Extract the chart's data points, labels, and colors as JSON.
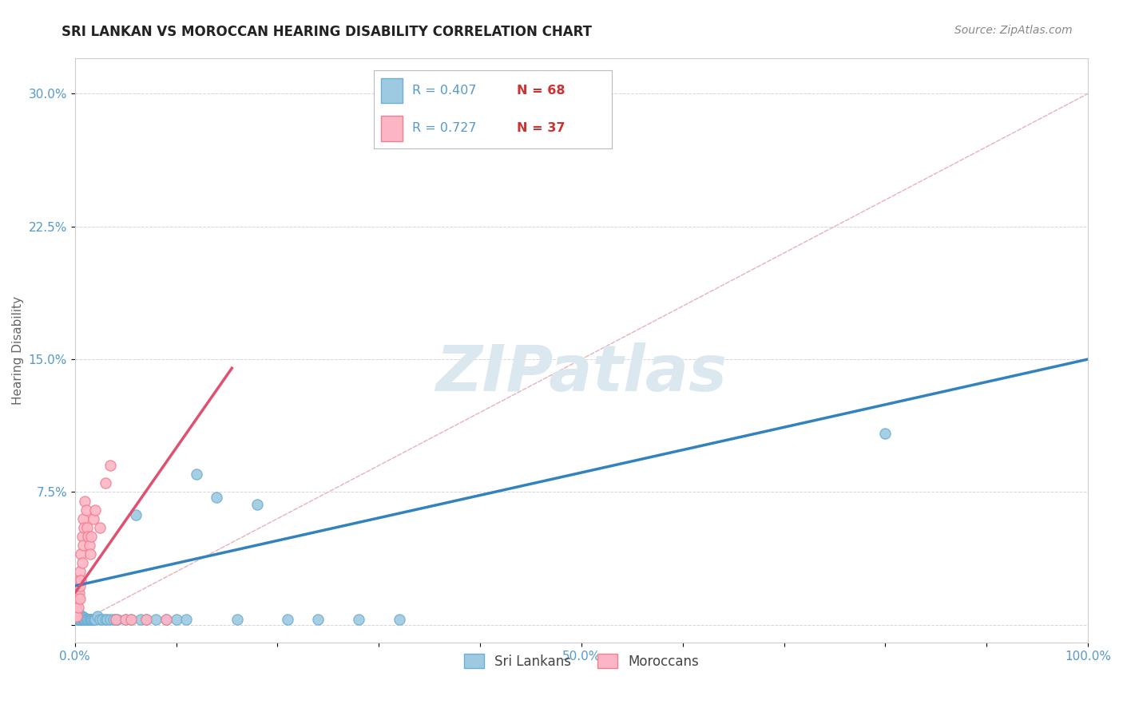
{
  "title": "SRI LANKAN VS MOROCCAN HEARING DISABILITY CORRELATION CHART",
  "source": "Source: ZipAtlas.com",
  "ylabel": "Hearing Disability",
  "xlim": [
    0.0,
    1.0
  ],
  "ylim": [
    -0.01,
    0.32
  ],
  "ytick_positions": [
    0.0,
    0.075,
    0.15,
    0.225,
    0.3
  ],
  "ytick_labels": [
    "",
    "7.5%",
    "15.0%",
    "22.5%",
    "30.0%"
  ],
  "xtick_positions": [
    0.0,
    0.1,
    0.2,
    0.3,
    0.4,
    0.5,
    0.6,
    0.7,
    0.8,
    0.9,
    1.0
  ],
  "xtick_labels": [
    "0.0%",
    "",
    "",
    "",
    "",
    "50.0%",
    "",
    "",
    "",
    "",
    "100.0%"
  ],
  "sri_lankans_color": "#9ecae1",
  "moroccans_color": "#fcb5c5",
  "sri_lankans_edge": "#6baed6",
  "moroccans_edge": "#f08090",
  "sri_line_color": "#3182bd",
  "mor_line_color": "#e05070",
  "diagonal_color": "#e8b0b8",
  "background_color": "#ffffff",
  "watermark_color": "#dce8f0",
  "title_fontsize": 12,
  "source_fontsize": 10,
  "tick_fontsize": 11,
  "ylabel_fontsize": 11,
  "sri_line_x": [
    0.0,
    1.0
  ],
  "sri_line_y": [
    0.022,
    0.15
  ],
  "mor_line_x": [
    0.0,
    0.155
  ],
  "mor_line_y": [
    0.018,
    0.145
  ],
  "sri_lankans_x": [
    0.001,
    0.001,
    0.001,
    0.001,
    0.002,
    0.002,
    0.002,
    0.002,
    0.002,
    0.003,
    0.003,
    0.003,
    0.003,
    0.004,
    0.004,
    0.004,
    0.005,
    0.005,
    0.005,
    0.005,
    0.006,
    0.006,
    0.007,
    0.007,
    0.007,
    0.008,
    0.008,
    0.009,
    0.009,
    0.01,
    0.01,
    0.011,
    0.012,
    0.013,
    0.014,
    0.015,
    0.016,
    0.017,
    0.018,
    0.019,
    0.02,
    0.022,
    0.025,
    0.027,
    0.03,
    0.032,
    0.035,
    0.038,
    0.04,
    0.042,
    0.05,
    0.055,
    0.06,
    0.065,
    0.07,
    0.08,
    0.09,
    0.1,
    0.11,
    0.12,
    0.14,
    0.16,
    0.18,
    0.21,
    0.24,
    0.28,
    0.32,
    0.8
  ],
  "sri_lankans_y": [
    0.01,
    0.015,
    0.005,
    0.008,
    0.012,
    0.005,
    0.008,
    0.003,
    0.006,
    0.005,
    0.007,
    0.004,
    0.003,
    0.005,
    0.003,
    0.006,
    0.004,
    0.003,
    0.005,
    0.003,
    0.005,
    0.003,
    0.004,
    0.003,
    0.005,
    0.004,
    0.003,
    0.004,
    0.003,
    0.004,
    0.003,
    0.003,
    0.003,
    0.003,
    0.003,
    0.003,
    0.003,
    0.003,
    0.003,
    0.003,
    0.003,
    0.005,
    0.003,
    0.003,
    0.003,
    0.003,
    0.003,
    0.003,
    0.003,
    0.003,
    0.003,
    0.003,
    0.062,
    0.003,
    0.003,
    0.003,
    0.003,
    0.003,
    0.003,
    0.085,
    0.072,
    0.003,
    0.068,
    0.003,
    0.003,
    0.003,
    0.003,
    0.108
  ],
  "moroccans_x": [
    0.001,
    0.001,
    0.002,
    0.002,
    0.002,
    0.003,
    0.003,
    0.003,
    0.004,
    0.004,
    0.005,
    0.005,
    0.005,
    0.006,
    0.006,
    0.007,
    0.007,
    0.008,
    0.008,
    0.009,
    0.01,
    0.011,
    0.012,
    0.013,
    0.014,
    0.015,
    0.016,
    0.018,
    0.02,
    0.025,
    0.03,
    0.035,
    0.04,
    0.05,
    0.055,
    0.07,
    0.09
  ],
  "moroccans_y": [
    0.01,
    0.005,
    0.012,
    0.008,
    0.005,
    0.02,
    0.015,
    0.01,
    0.025,
    0.018,
    0.03,
    0.022,
    0.015,
    0.04,
    0.025,
    0.05,
    0.035,
    0.06,
    0.045,
    0.055,
    0.07,
    0.065,
    0.055,
    0.05,
    0.045,
    0.04,
    0.05,
    0.06,
    0.065,
    0.055,
    0.08,
    0.09,
    0.003,
    0.003,
    0.003,
    0.003,
    0.003
  ]
}
